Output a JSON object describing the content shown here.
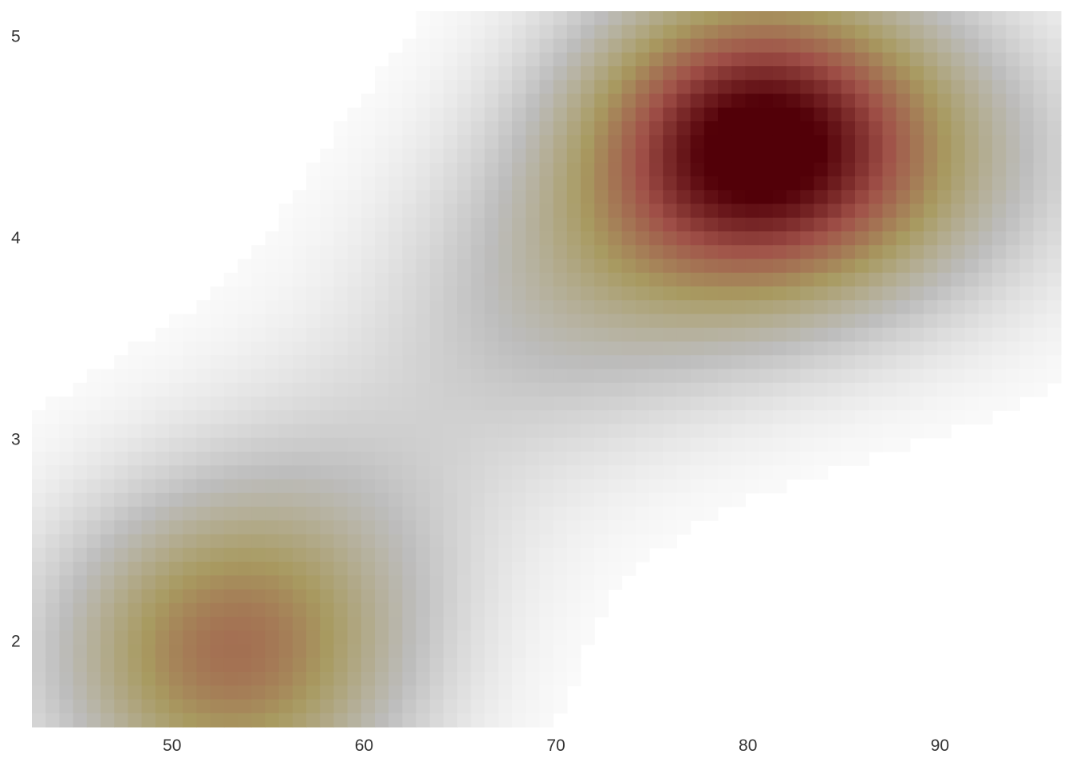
{
  "chart_data": {
    "type": "heatmap",
    "title": "",
    "xlabel": "",
    "ylabel": "",
    "xlim": [
      42.7,
      96.3
    ],
    "ylim": [
      1.57,
      5.12
    ],
    "x_ticks": [
      "50",
      "60",
      "70",
      "80",
      "90"
    ],
    "y_ticks": [
      "2",
      "3",
      "4",
      "5"
    ],
    "grid": false,
    "legend": "none",
    "colormap": [
      "#ffffff",
      "#bdbdbd",
      "#a89a60",
      "#a05048",
      "#520008"
    ],
    "density_peaks": [
      {
        "x": 80.3,
        "y": 4.45,
        "density": 1.0
      },
      {
        "x": 53.0,
        "y": 1.93,
        "density": 0.62
      },
      {
        "x": 70.0,
        "y": 3.7,
        "density": 0.22
      },
      {
        "x": 60.0,
        "y": 2.75,
        "density": 0.12
      },
      {
        "x": 90.0,
        "y": 4.4,
        "density": 0.2
      }
    ]
  }
}
